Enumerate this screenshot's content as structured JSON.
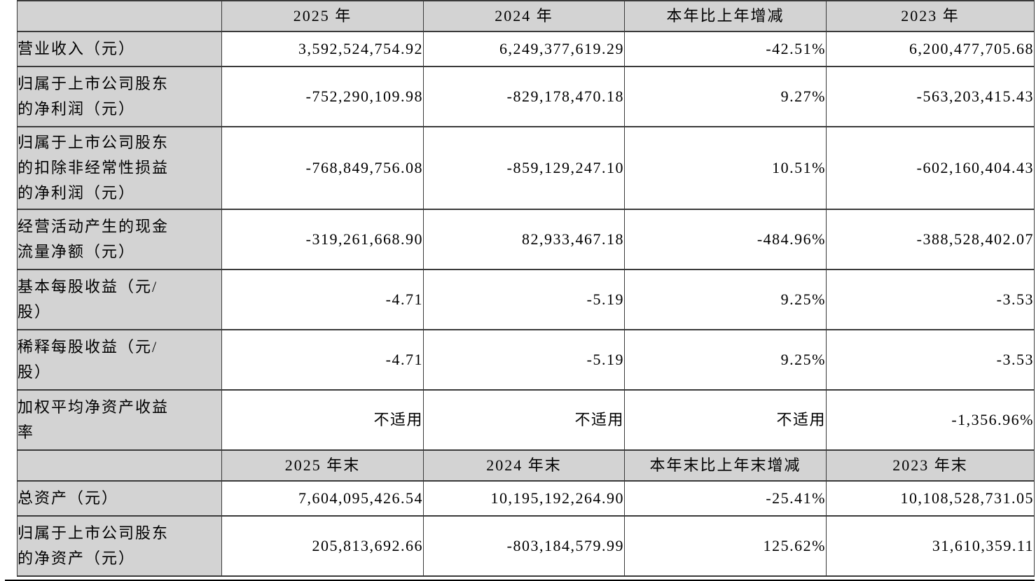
{
  "colors": {
    "header_bg": "#d3d3d3",
    "label_bg": "#d3d3d3",
    "cell_bg": "#ffffff",
    "border": "#3a3a3a",
    "rule": "#000000",
    "text": "#000000"
  },
  "table": {
    "description": "key-financial-indicators",
    "rows": [
      {
        "type": "header",
        "cells": [
          "",
          "2025 年",
          "2024 年",
          "本年比上年增减",
          "2023 年"
        ]
      },
      {
        "type": "data",
        "cells": [
          "营业收入（元）",
          "3,592,524,754.92",
          "6,249,377,619.29",
          "-42.51%",
          "6,200,477,705.68"
        ]
      },
      {
        "type": "data",
        "cells": [
          "归属于上市公司股东\n的净利润（元）",
          "-752,290,109.98",
          "-829,178,470.18",
          "9.27%",
          "-563,203,415.43"
        ]
      },
      {
        "type": "data",
        "cells": [
          "归属于上市公司股东\n的扣除非经常性损益\n的净利润（元）",
          "-768,849,756.08",
          "-859,129,247.10",
          "10.51%",
          "-602,160,404.43"
        ]
      },
      {
        "type": "data",
        "cells": [
          "经营活动产生的现金\n流量净额（元）",
          "-319,261,668.90",
          "82,933,467.18",
          "-484.96%",
          "-388,528,402.07"
        ]
      },
      {
        "type": "data",
        "cells": [
          "基本每股收益（元/\n股）",
          "-4.71",
          "-5.19",
          "9.25%",
          "-3.53"
        ]
      },
      {
        "type": "data",
        "cells": [
          "稀释每股收益（元/\n股）",
          "-4.71",
          "-5.19",
          "9.25%",
          "-3.53"
        ]
      },
      {
        "type": "data",
        "cells": [
          "加权平均净资产收益\n率",
          "不适用",
          "不适用",
          "不适用",
          "-1,356.96%"
        ]
      },
      {
        "type": "header",
        "cells": [
          "",
          "2025 年末",
          "2024 年末",
          "本年末比上年末增减",
          "2023 年末"
        ]
      },
      {
        "type": "data",
        "cells": [
          "总资产（元）",
          "7,604,095,426.54",
          "10,195,192,264.90",
          "-25.41%",
          "10,108,528,731.05"
        ]
      },
      {
        "type": "data",
        "cells": [
          "归属于上市公司股东\n的净资产（元）",
          "205,813,692.66",
          "-803,184,579.99",
          "125.62%",
          "31,610,359.11"
        ]
      }
    ]
  }
}
